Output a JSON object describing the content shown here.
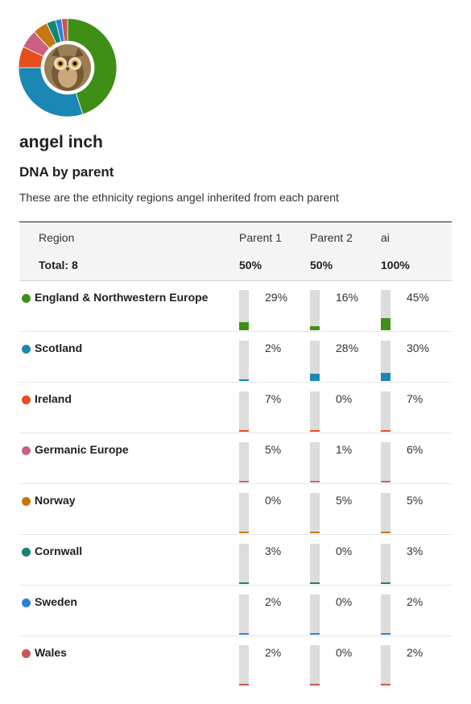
{
  "profile": {
    "name": "angel inch",
    "avatar_icon": "owl-photo"
  },
  "section": {
    "title": "DNA by parent",
    "description": "These are the ethnicity regions angel inherited from each parent"
  },
  "table": {
    "headers": {
      "region": "Region",
      "parent1": "Parent 1",
      "parent2": "Parent 2",
      "child": "ai"
    },
    "totals": {
      "label": "Total: 8",
      "parent1": "50%",
      "parent2": "50%",
      "child": "100%"
    },
    "rows": [
      {
        "name": "England & Northwestern Europe",
        "color": "#3f8f17",
        "p1": "29%",
        "p2": "16%",
        "ai": "45%",
        "v1": 29,
        "v2": 16,
        "va": 45
      },
      {
        "name": "Scotland",
        "color": "#1b87b4",
        "p1": "2%",
        "p2": "28%",
        "ai": "30%",
        "v1": 2,
        "v2": 28,
        "va": 30
      },
      {
        "name": "Ireland",
        "color": "#e44f1c",
        "p1": "7%",
        "p2": "0%",
        "ai": "7%",
        "v1": 7,
        "v2": 0,
        "va": 7
      },
      {
        "name": "Germanic Europe",
        "color": "#c8627f",
        "p1": "5%",
        "p2": "1%",
        "ai": "6%",
        "v1": 5,
        "v2": 1,
        "va": 6
      },
      {
        "name": "Norway",
        "color": "#c77614",
        "p1": "0%",
        "p2": "5%",
        "ai": "5%",
        "v1": 0,
        "v2": 5,
        "va": 5
      },
      {
        "name": "Cornwall",
        "color": "#12876d",
        "p1": "3%",
        "p2": "0%",
        "ai": "3%",
        "v1": 3,
        "v2": 0,
        "va": 3
      },
      {
        "name": "Sweden",
        "color": "#2f7fd9",
        "p1": "2%",
        "p2": "0%",
        "ai": "2%",
        "v1": 2,
        "v2": 0,
        "va": 2
      },
      {
        "name": "Wales",
        "color": "#c95656",
        "p1": "2%",
        "p2": "0%",
        "ai": "2%",
        "v1": 2,
        "v2": 0,
        "va": 2
      }
    ]
  }
}
